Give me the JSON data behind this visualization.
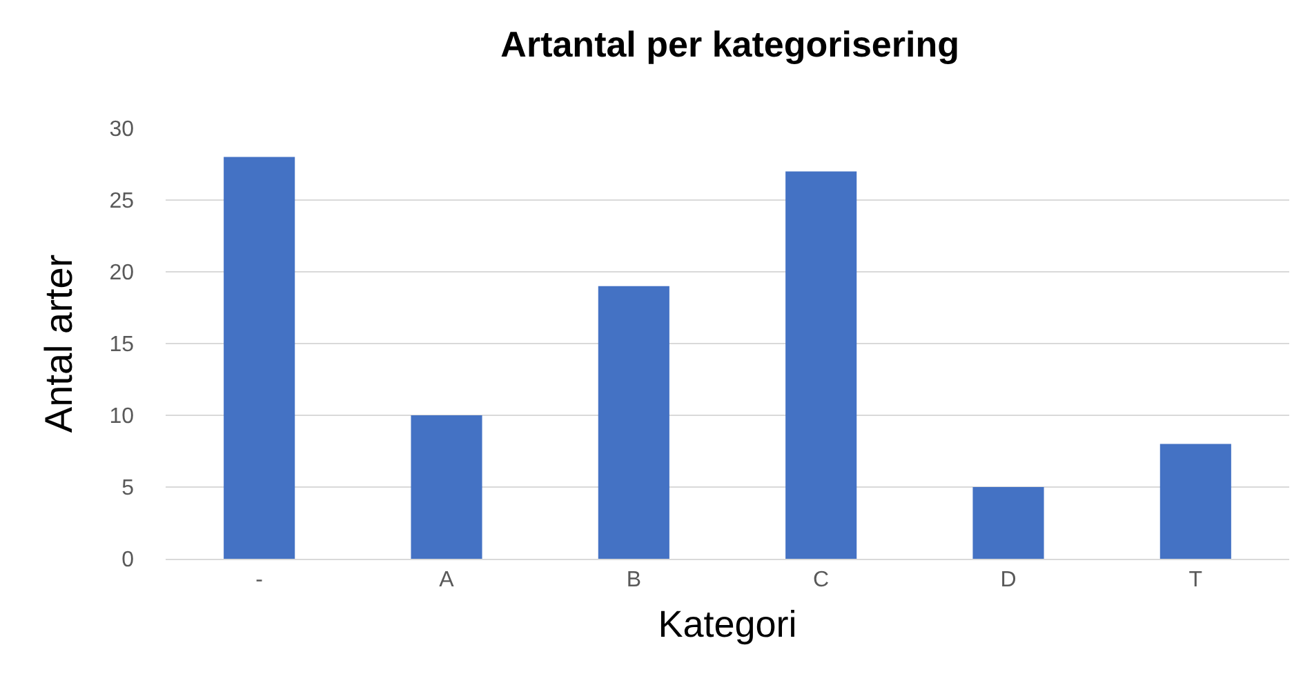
{
  "chart_data": {
    "type": "bar",
    "title": "Artantal per kategorisering",
    "xlabel": "Kategori",
    "ylabel": "Antal arter",
    "categories": [
      "-",
      "A",
      "B",
      "C",
      "D",
      "T"
    ],
    "values": [
      28,
      10,
      19,
      27,
      5,
      8
    ],
    "color": "#4472c4",
    "ylim": [
      0,
      30
    ],
    "yticks": [
      0,
      5,
      10,
      15,
      20,
      25,
      30
    ],
    "grid": "y",
    "legend": false
  }
}
